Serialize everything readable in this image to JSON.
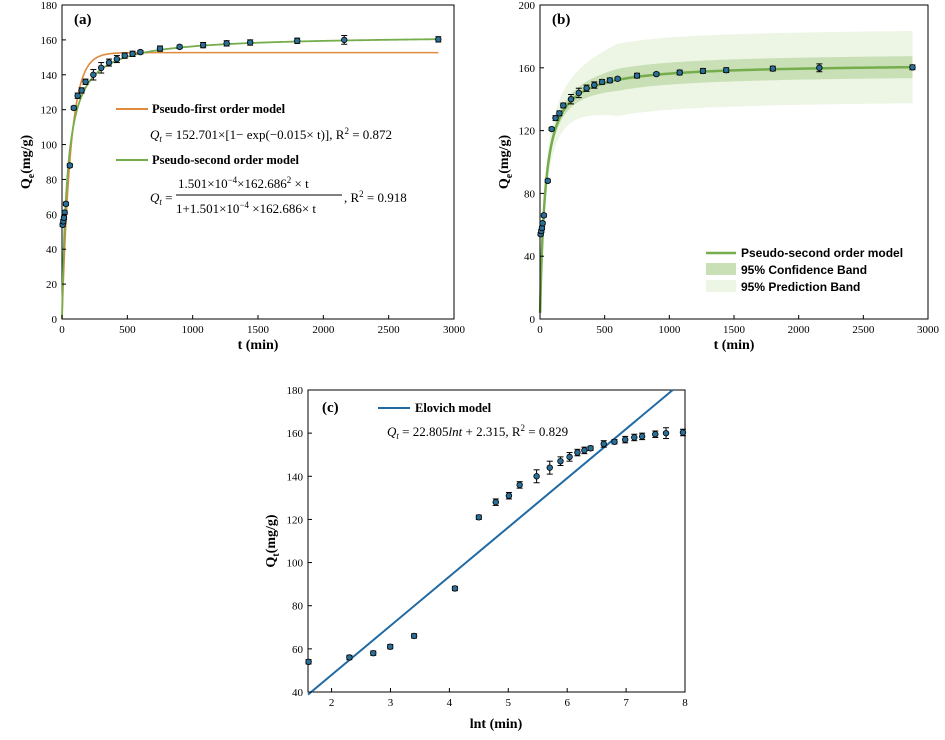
{
  "chart_data": [
    {
      "panel": "(a)",
      "type": "scatter",
      "xlabel": "t (min)",
      "ylabel": "Q_e(mg/g)",
      "xlim": [
        0,
        3000
      ],
      "ylim": [
        0,
        180
      ],
      "xticks": [
        0,
        500,
        1000,
        1500,
        2000,
        2500,
        3000
      ],
      "yticks": [
        0,
        20,
        40,
        60,
        80,
        100,
        120,
        140,
        160,
        180
      ],
      "series": [
        {
          "name": "experimental",
          "color": "#2a6f97",
          "x": [
            5,
            10,
            15,
            20,
            30,
            60,
            90,
            120,
            150,
            180,
            240,
            300,
            360,
            420,
            480,
            540,
            600,
            750,
            900,
            1080,
            1260,
            1440,
            1800,
            2160,
            2880
          ],
          "y": [
            54,
            56,
            58,
            61,
            66,
            88,
            121,
            128,
            131,
            136,
            140,
            144,
            147,
            149,
            151,
            152,
            153,
            155,
            156,
            157,
            158,
            158.5,
            159.5,
            160,
            160.3
          ],
          "err": [
            1,
            1,
            1,
            1,
            1,
            1,
            1,
            1.5,
            1.5,
            1.5,
            3,
            3,
            2,
            2,
            1.5,
            1.5,
            1,
            1.5,
            1,
            1.5,
            1.5,
            1.5,
            1.5,
            2.5,
            1.5
          ]
        },
        {
          "name": "Pseudo-first order model",
          "color": "#e08a3c",
          "model": "pfo",
          "qe": 152.701,
          "k": 0.015
        },
        {
          "name": "Pseudo-second order model",
          "color": "#76ad4c",
          "model": "pso",
          "qe": 162.686,
          "k": 0.0001501
        }
      ],
      "legend": [
        {
          "label": "Pseudo-first order model",
          "color": "#e08a3c"
        },
        {
          "label": "Pseudo-second order model",
          "color": "#76ad4c"
        }
      ],
      "equations": {
        "pfo_lhs": "Q",
        "pfo_sub": "t",
        "pfo_rhs": " = 152.701×[1− exp(−0.015× t)], R",
        "pfo_r2": " = 0.872",
        "pso_lhs": "Q",
        "pso_sub": "t",
        "pso_num": "1.501×10",
        "pso_num_exp": "−4",
        "pso_num_rest": "×162.686",
        "pso_num_exp2": "2",
        "pso_num_tail": " × t",
        "pso_den": "1+1.501×10",
        "pso_den_exp": "−4",
        "pso_den_tail": " ×162.686× t",
        "pso_r2_a": ", R",
        "pso_r2_b": " = 0.918"
      }
    },
    {
      "panel": "(b)",
      "type": "scatter",
      "xlabel": "t (min)",
      "ylabel": "Q_e(mg/g)",
      "xlim": [
        0,
        3000
      ],
      "ylim": [
        0,
        200
      ],
      "xticks": [
        0,
        500,
        1000,
        1500,
        2000,
        2500,
        3000
      ],
      "yticks": [
        0,
        40,
        80,
        120,
        160,
        200
      ],
      "series": [
        {
          "name": "experimental",
          "color": "#2a6f97"
        },
        {
          "name": "Pseudo-second order model",
          "color": "#76ad4c",
          "model": "pso",
          "qe": 162.686,
          "k": 0.0001501
        }
      ],
      "bands": {
        "confidence": {
          "label": "95% Confidence Band",
          "color": "#c9dfb6",
          "halfwidth_max": 7
        },
        "prediction": {
          "label": "95% Prediction Band",
          "color": "#edf5e5",
          "halfwidth_max": 23
        }
      },
      "legend": [
        {
          "label": "Pseudo-second order model",
          "color": "#76ad4c"
        },
        {
          "label": "95% Confidence Band",
          "color": "#c9dfb6"
        },
        {
          "label": "95% Prediction Band",
          "color": "#edf5e5"
        }
      ]
    },
    {
      "panel": "(c)",
      "type": "scatter",
      "xlabel": "lnt (min)",
      "ylabel": "Q_t(mg/g)",
      "xlim": [
        1.6,
        8
      ],
      "ylim": [
        40,
        180
      ],
      "xticks": [
        2,
        3,
        4,
        5,
        6,
        7,
        8
      ],
      "yticks": [
        40,
        60,
        80,
        100,
        120,
        140,
        160,
        180
      ],
      "series": [
        {
          "name": "experimental",
          "color": "#2a6f97"
        },
        {
          "name": "Elovich model",
          "color": "#1f6aa5",
          "model": "linear",
          "slope": 22.805,
          "intercept": 2.315
        }
      ],
      "legend": [
        {
          "label": "Elovich model",
          "color": "#1f6aa5"
        }
      ],
      "equations": {
        "lhs": "Q",
        "sub": "t",
        "rhs": " = 22.805",
        "lnt": "lnt",
        "rhs2": " + 2.315, R",
        "r2": " = 0.829"
      }
    }
  ]
}
